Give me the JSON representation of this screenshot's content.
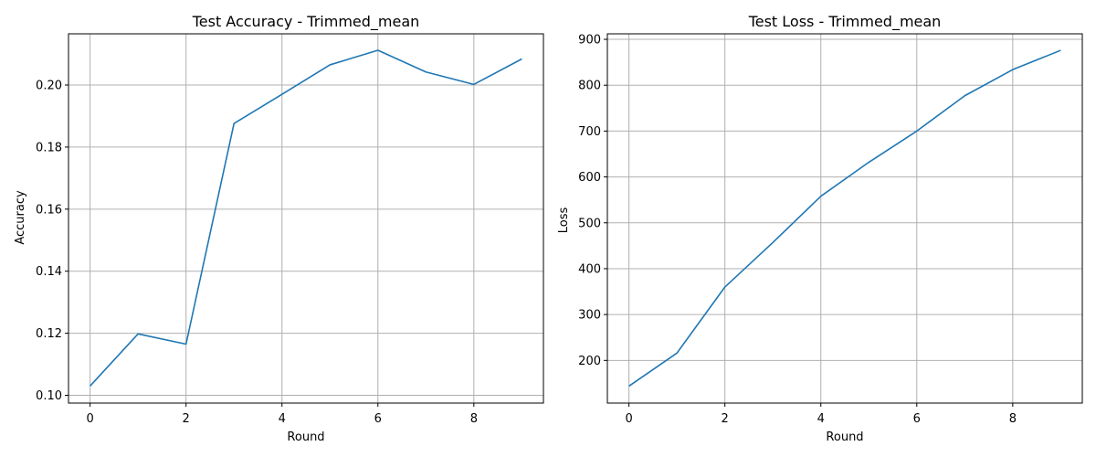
{
  "colors": {
    "series": "#1f77b4",
    "grid": "#b0b0b0"
  },
  "chart_data": [
    {
      "type": "line",
      "title": "Test Accuracy - Trimmed_mean",
      "xlabel": "Round",
      "ylabel": "Accuracy",
      "grid": true,
      "x": [
        0,
        1,
        2,
        3,
        4,
        5,
        6,
        7,
        8,
        9
      ],
      "xlim": [
        -0.45,
        9.45
      ],
      "ylim": [
        0.0975,
        0.2165
      ],
      "xticks": [
        0,
        2,
        4,
        6,
        8
      ],
      "xtick_labels": [
        "0",
        "2",
        "4",
        "6",
        "8"
      ],
      "yticks": [
        0.1,
        0.12,
        0.14,
        0.16,
        0.18,
        0.2
      ],
      "ytick_labels": [
        "0.10",
        "0.12",
        "0.14",
        "0.16",
        "0.18",
        "0.20"
      ],
      "series": [
        {
          "values": [
            0.103,
            0.1198,
            0.1165,
            0.1876,
            0.197,
            0.2065,
            0.2112,
            0.2042,
            0.2002,
            0.2084
          ]
        }
      ]
    },
    {
      "type": "line",
      "title": "Test Loss - Trimmed_mean",
      "xlabel": "Round",
      "ylabel": "Loss",
      "grid": true,
      "x": [
        0,
        1,
        2,
        3,
        4,
        5,
        6,
        7,
        8,
        9
      ],
      "xlim": [
        -0.45,
        9.45
      ],
      "ylim": [
        107,
        912
      ],
      "xticks": [
        0,
        2,
        4,
        6,
        8
      ],
      "xtick_labels": [
        "0",
        "2",
        "4",
        "6",
        "8"
      ],
      "yticks": [
        200,
        300,
        400,
        500,
        600,
        700,
        800,
        900
      ],
      "ytick_labels": [
        "200",
        "300",
        "400",
        "500",
        "600",
        "700",
        "800",
        "900"
      ],
      "series": [
        {
          "values": [
            144,
            216,
            360,
            457,
            558,
            632,
            700,
            777,
            834,
            876
          ]
        }
      ]
    }
  ]
}
